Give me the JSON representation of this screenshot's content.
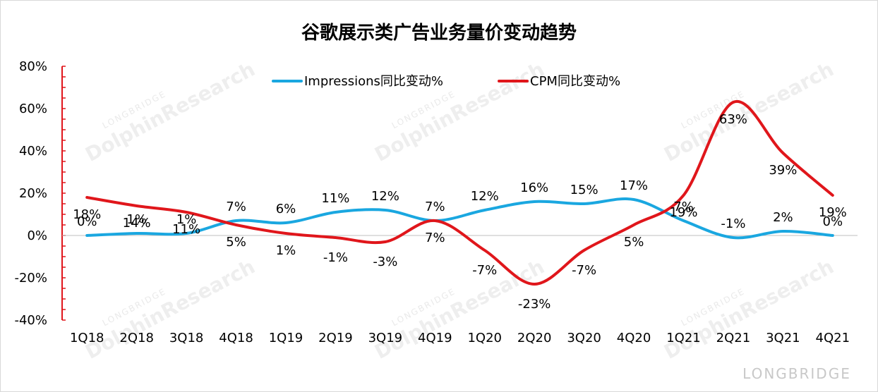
{
  "chart_data": {
    "type": "line",
    "title": "谷歌展示类广告业务量价变动趋势",
    "categories": [
      "1Q18",
      "2Q18",
      "3Q18",
      "4Q18",
      "1Q19",
      "2Q19",
      "3Q19",
      "4Q19",
      "1Q20",
      "2Q20",
      "3Q20",
      "4Q20",
      "1Q21",
      "2Q21",
      "3Q21",
      "4Q21"
    ],
    "series": [
      {
        "name": "Impressions同比变动%",
        "color": "#1aa7e0",
        "values": [
          0,
          1,
          1,
          7,
          6,
          11,
          12,
          7,
          12,
          16,
          15,
          17,
          7,
          -1,
          2,
          0
        ],
        "labels": [
          "0%",
          "1%",
          "1%",
          "7%",
          "6%",
          "11%",
          "12%",
          "7%",
          "12%",
          "16%",
          "15%",
          "17%",
          "7%",
          "-1%",
          "2%",
          "0%"
        ]
      },
      {
        "name": "CPM同比变动%",
        "color": "#e0161b",
        "values": [
          18,
          14,
          11,
          5,
          1,
          -1,
          -3,
          7,
          -7,
          -23,
          -7,
          5,
          19,
          63,
          39,
          19
        ],
        "labels": [
          "18%",
          "14%",
          "11%",
          "5%",
          "1%",
          "-1%",
          "-3%",
          "7%",
          "-7%",
          "-23%",
          "-7%",
          "5%",
          "19%",
          "63%",
          "39%",
          "19%"
        ]
      }
    ],
    "yticks": [
      "-40%",
      "-20%",
      "0%",
      "20%",
      "40%",
      "60%",
      "80%"
    ],
    "ylim": [
      -40,
      80
    ],
    "legend_position": "top-center",
    "grid": false,
    "watermark": {
      "brand": "LONGBRIDGE",
      "name": "DolphinResearch",
      "footer": "LONGBRIDGE"
    }
  }
}
